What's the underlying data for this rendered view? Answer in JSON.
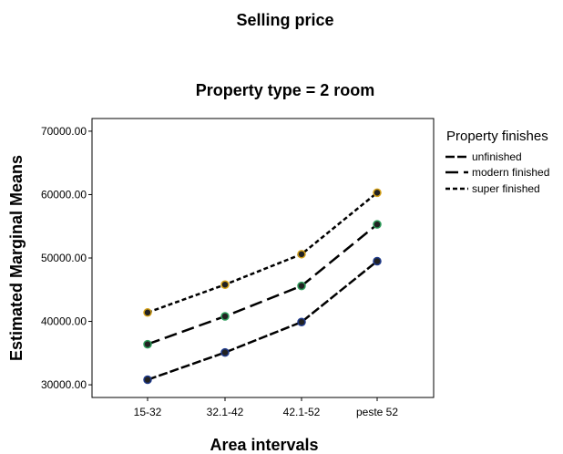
{
  "chart_data": {
    "type": "line",
    "title": "Selling price",
    "subtitle": "Property type = 2 room",
    "xlabel": "Area intervals",
    "ylabel": "Estimated Marginal Means",
    "categories": [
      "15-32",
      "32.1-42",
      "42.1-52",
      "peste 52"
    ],
    "ylim": [
      28000,
      72000
    ],
    "yticks": [
      "30000.00",
      "40000.00",
      "50000.00",
      "60000.00",
      "70000.00"
    ],
    "grid": false,
    "legend": {
      "title": "Property finishes",
      "placement": "right"
    },
    "series": [
      {
        "name": "unfinished",
        "values": [
          30800,
          35100,
          39900,
          49500
        ],
        "dash": "solid-long",
        "marker": "#1f3a8a"
      },
      {
        "name": "modern finished",
        "values": [
          36400,
          40800,
          45600,
          55300
        ],
        "dash": "long",
        "marker": "#2e9e5b"
      },
      {
        "name": "super finished",
        "values": [
          41400,
          45800,
          50600,
          60300
        ],
        "dash": "short",
        "marker": "#d4a017"
      }
    ]
  }
}
